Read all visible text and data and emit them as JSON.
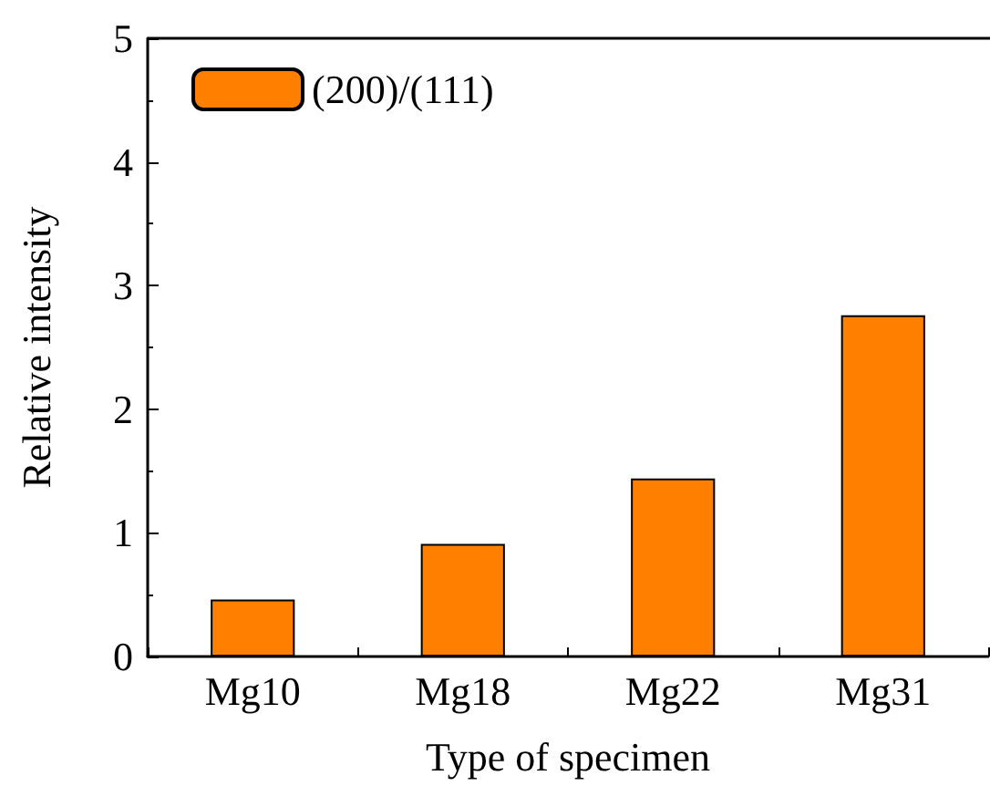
{
  "chart_data": {
    "type": "bar",
    "xlabel": "Type of specimen",
    "ylabel": "Relative intensity",
    "categories": [
      "Mg10",
      "Mg18",
      "Mg22",
      "Mg31"
    ],
    "series": [
      {
        "name": "(200)/(111)",
        "color": "#ff8000",
        "values": [
          0.46,
          0.91,
          1.44,
          2.76
        ]
      }
    ],
    "ylim": [
      0,
      5
    ],
    "yticks": [
      0,
      1,
      2,
      3,
      4,
      5
    ],
    "grid": false,
    "legend": "top left"
  }
}
